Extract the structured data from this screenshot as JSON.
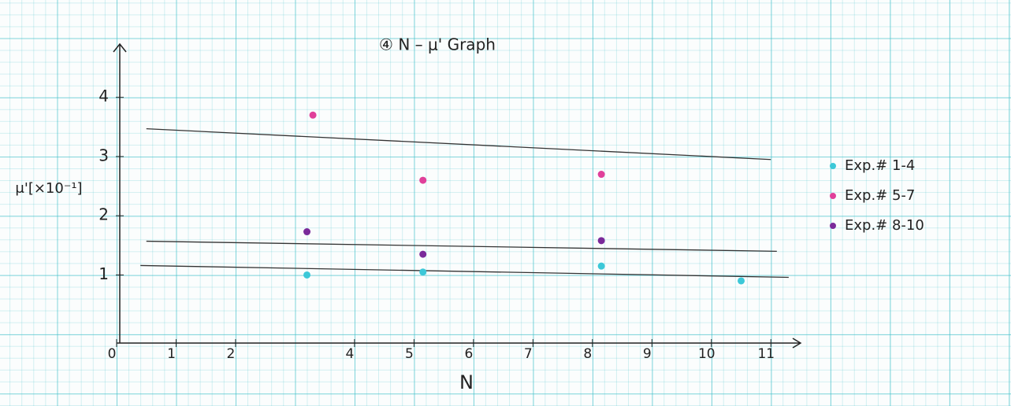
{
  "chart_data": {
    "type": "scatter",
    "title": "④ N – μ' Graph",
    "x_label": "N",
    "y_label": "μ'[×10⁻¹]",
    "xlim": [
      0,
      11.5
    ],
    "ylim": [
      -0.15,
      4.9
    ],
    "xticks": [
      0,
      1,
      2,
      4,
      5,
      6,
      7,
      8,
      9,
      10,
      11
    ],
    "yticks": [
      1,
      2,
      3,
      4
    ],
    "series": [
      {
        "name": "Exp.# 1-4",
        "color": "#3cc8d8",
        "x": [
          3.2,
          5.15,
          8.15,
          10.5
        ],
        "values": [
          1.0,
          1.05,
          1.15,
          0.9
        ]
      },
      {
        "name": "Exp.# 5-7",
        "color": "#e0409a",
        "x": [
          3.3,
          5.15,
          8.15
        ],
        "values": [
          3.7,
          2.6,
          2.7
        ]
      },
      {
        "name": "Exp.# 8-10",
        "color": "#7a2a9a",
        "x": [
          3.2,
          5.15,
          8.15
        ],
        "values": [
          1.73,
          1.35,
          1.58
        ]
      }
    ],
    "trend_lines": [
      {
        "x": [
          0.5,
          11
        ],
        "values": [
          3.47,
          2.95
        ]
      },
      {
        "x": [
          0.5,
          11.1
        ],
        "values": [
          1.57,
          1.4
        ]
      },
      {
        "x": [
          0.4,
          11.3
        ],
        "values": [
          1.16,
          0.96
        ]
      }
    ]
  }
}
